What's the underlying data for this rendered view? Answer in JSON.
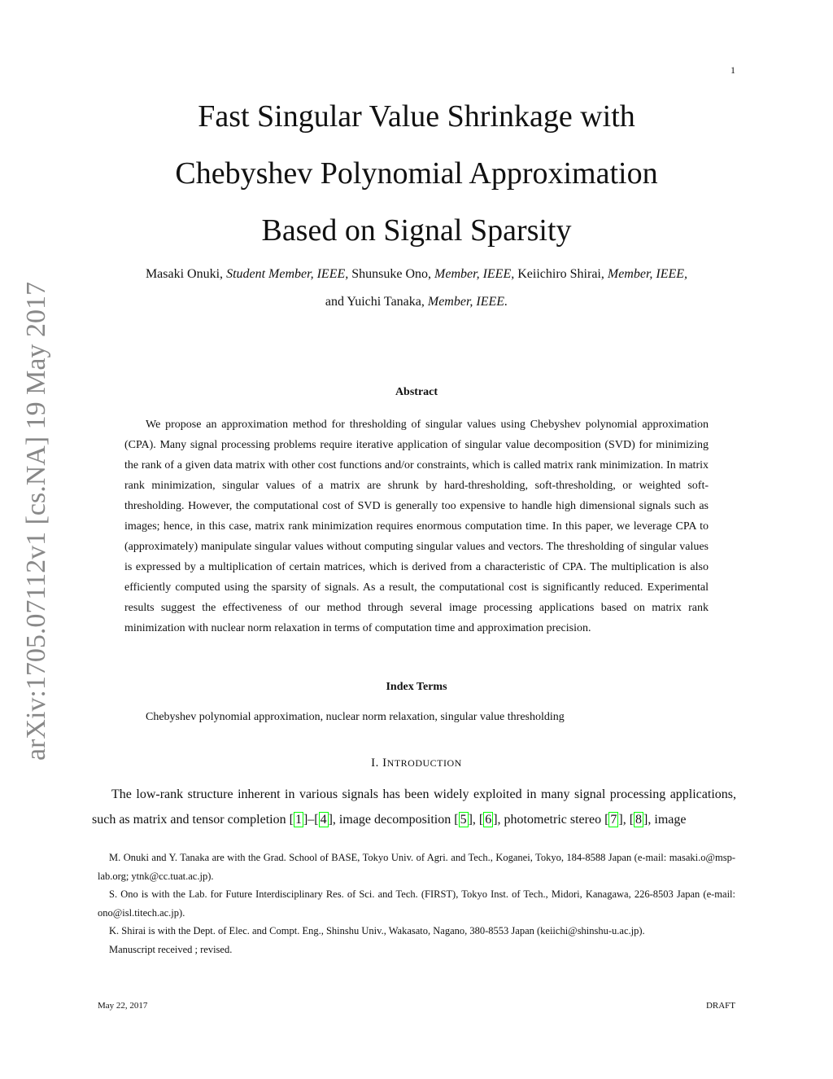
{
  "page_number": "1",
  "title_lines": [
    "Fast Singular Value Shrinkage with",
    "Chebyshev Polynomial Approximation",
    "Based on Signal Sparsity"
  ],
  "authors": {
    "line1": [
      {
        "name": "Masaki Onuki, ",
        "role": "Student Member, IEEE,"
      },
      {
        "name": " Shunsuke Ono, ",
        "role": "Member, IEEE,"
      },
      {
        "name": " Keiichiro Shirai, ",
        "role": "Member, IEEE,"
      }
    ],
    "line2": {
      "name": "and Yuichi Tanaka, ",
      "role": "Member, IEEE."
    }
  },
  "arxiv_stamp": "arXiv:1705.07112v1  [cs.NA]  19 May 2017",
  "abstract_heading": "Abstract",
  "abstract": "We propose an approximation method for thresholding of singular values using Chebyshev polynomial approximation (CPA). Many signal processing problems require iterative application of singular value decomposition (SVD) for minimizing the rank of a given data matrix with other cost functions and/or constraints, which is called matrix rank minimization. In matrix rank minimization, singular values of a matrix are shrunk by hard-thresholding, soft-thresholding, or weighted soft-thresholding. However, the computational cost of SVD is generally too expensive to handle high dimensional signals such as images; hence, in this case, matrix rank minimization requires enormous computation time. In this paper, we leverage CPA to (approximately) manipulate singular values without computing singular values and vectors. The thresholding of singular values is expressed by a multiplication of certain matrices, which is derived from a characteristic of CPA. The multiplication is also efficiently computed using the sparsity of signals. As a result, the computational cost is significantly reduced. Experimental results suggest the effectiveness of our method through several image processing applications based on matrix rank minimization with nuclear norm relaxation in terms of computation time and approximation precision.",
  "index_terms_heading": "Index Terms",
  "index_terms": "Chebyshev polynomial approximation, nuclear norm relaxation, singular value thresholding",
  "section": {
    "number": "I.",
    "first": "I",
    "rest": "NTRODUCTION"
  },
  "intro": {
    "t1": "The low-rank structure inherent in various signals has been widely exploited in many signal processing applications, such as matrix and tensor completion ",
    "c1": "1",
    "d1": "–",
    "c4": "4",
    "t2": ", image decomposition ",
    "c5": "5",
    "t3": ", ",
    "c6": "6",
    "t4": ", photometric stereo ",
    "c7": "7",
    "t5": ", ",
    "c8": "8",
    "t6": ", image"
  },
  "footnotes": [
    "M. Onuki and Y. Tanaka are with the Grad. School of BASE, Tokyo Univ. of Agri. and Tech., Koganei, Tokyo, 184-8588 Japan (e-mail: masaki.o@msp-lab.org; ytnk@cc.tuat.ac.jp).",
    "S. Ono is with the Lab. for Future Interdisciplinary Res. of Sci. and Tech. (FIRST), Tokyo Inst. of Tech., Midori, Kanagawa, 226-8503 Japan (e-mail: ono@isl.titech.ac.jp).",
    "K. Shirai is with the Dept. of Elec. and Compt. Eng., Shinshu Univ., Wakasato, Nagano, 380-8553 Japan (keiichi@shinshu-u.ac.jp).",
    "Manuscript received ; revised."
  ],
  "footer": {
    "date": "May 22, 2017",
    "status": "DRAFT"
  },
  "colors": {
    "citation_box": "#00ff00",
    "arxiv_stamp": "#888888"
  }
}
